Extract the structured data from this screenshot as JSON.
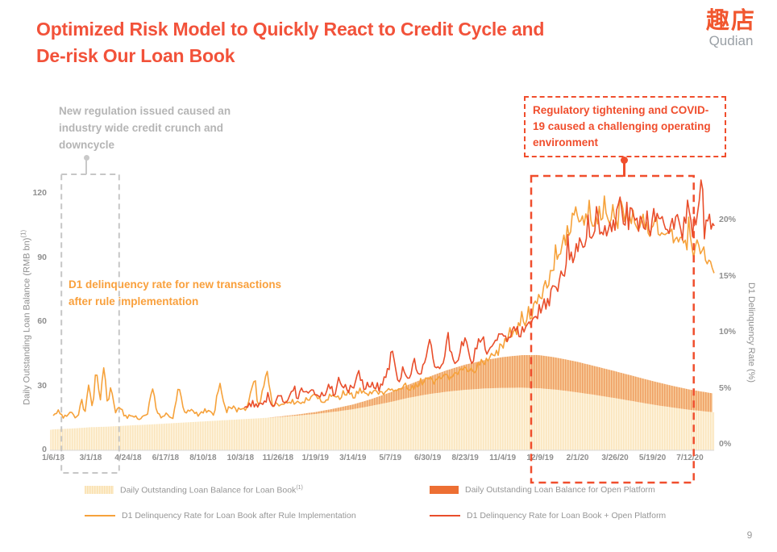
{
  "slide": {
    "title_line1": "Optimized Risk Model to Quickly React to Credit Cycle and",
    "title_line2": "De-risk Our Loan Book",
    "title_color": "#f2523a",
    "page_number": "9",
    "logo": {
      "cjk": "趣店",
      "latin": "Qudian"
    }
  },
  "annotations": {
    "gray": {
      "text": "New regulation issued caused an industry wide credit crunch and downcycle",
      "color": "#b5b5b5"
    },
    "orange": {
      "text": "D1 delinquency rate for new transactions after rule implementation",
      "color": "#f9a03c"
    },
    "red": {
      "text": "Regulatory tightening and COVID-19 caused a challenging operating environment",
      "color": "#f04e2d"
    }
  },
  "chart_data": {
    "type": "combo: stacked daily-bar areas (left axis) + two lines (right axis)",
    "title": "",
    "x_axis": {
      "tick_labels": [
        "1/6/18",
        "3/1/18",
        "4/24/18",
        "6/17/18",
        "8/10/18",
        "10/3/18",
        "11/26/18",
        "1/19/19",
        "3/14/19",
        "5/7/19",
        "6/30/19",
        "8/23/19",
        "11/4/19",
        "12/9/19",
        "2/1/20",
        "3/26/20",
        "5/19/20",
        "7/12/20"
      ]
    },
    "y_left": {
      "label": "Daily Outstanding Loan Balance (RMB bn)",
      "label_sup": "(1)",
      "ticks": [
        "0",
        "30",
        "60",
        "90",
        "120"
      ],
      "tick_values": [
        0,
        30,
        60,
        90,
        120
      ],
      "range": [
        0,
        129
      ]
    },
    "y_right": {
      "label": "D1 Delinquency Rate (%)",
      "ticks": [
        "0%",
        "5%",
        "10%",
        "15%",
        "20%"
      ],
      "tick_values": [
        0,
        5,
        10,
        15,
        20
      ],
      "range": [
        0,
        24.2
      ]
    },
    "highlight_boxes": [
      {
        "name": "gray-dashed-box",
        "color": "#c6c6c6",
        "x_span_ticks": [
          0.22,
          1.76
        ]
      },
      {
        "name": "red-dashed-box",
        "color": "#f04e2d",
        "x_span_ticks": [
          12.76,
          17.1
        ]
      }
    ],
    "series": [
      {
        "name": "Daily Outstanding Loan Balance for Loan Book",
        "sup": "(1)",
        "type": "area",
        "axis": "left",
        "fill_base": "#fdf4de",
        "fill_stripe": "#fbe5bd",
        "points": [
          [
            -0.08,
            9.6
          ],
          [
            0,
            9.8
          ],
          [
            0.5,
            10.2
          ],
          [
            1,
            10.8
          ],
          [
            1.5,
            11.1
          ],
          [
            2,
            11.6
          ],
          [
            2.5,
            12.0
          ],
          [
            3,
            12.5
          ],
          [
            3.5,
            13.0
          ],
          [
            4,
            13.5
          ],
          [
            4.5,
            14.0
          ],
          [
            5,
            14.5
          ],
          [
            5.5,
            15.0
          ],
          [
            6,
            15.5
          ],
          [
            6.5,
            16.2
          ],
          [
            7,
            17.0
          ],
          [
            7.5,
            18.0
          ],
          [
            8,
            19.2
          ],
          [
            8.5,
            20.8
          ],
          [
            9,
            22.6
          ],
          [
            9.5,
            24.6
          ],
          [
            10,
            26.2
          ],
          [
            10.5,
            27.4
          ],
          [
            11,
            28.3
          ],
          [
            11.5,
            28.9
          ],
          [
            12,
            29.2
          ],
          [
            12.5,
            29.3
          ],
          [
            13,
            29.0
          ],
          [
            13.5,
            28.2
          ],
          [
            14,
            27.1
          ],
          [
            14.5,
            25.8
          ],
          [
            15,
            24.4
          ],
          [
            15.5,
            22.9
          ],
          [
            16,
            21.4
          ],
          [
            16.5,
            20.1
          ],
          [
            17,
            18.9
          ],
          [
            17.65,
            17.8
          ]
        ]
      },
      {
        "name": "Daily Outstanding Loan Balance for Open Platform",
        "type": "area-stacked",
        "axis": "left",
        "fill_base": "#f7cb9b",
        "fill_stripe": "#efa164",
        "points": [
          [
            5.7,
            0
          ],
          [
            6,
            0.2
          ],
          [
            6.5,
            0.5
          ],
          [
            7,
            0.9
          ],
          [
            7.5,
            1.5
          ],
          [
            8,
            2.2
          ],
          [
            8.5,
            3.2
          ],
          [
            9,
            4.5
          ],
          [
            9.5,
            6.2
          ],
          [
            10,
            8.0
          ],
          [
            10.5,
            10.0
          ],
          [
            11,
            11.8
          ],
          [
            11.5,
            13.2
          ],
          [
            12,
            14.4
          ],
          [
            12.5,
            15.2
          ],
          [
            12.9,
            15.5
          ],
          [
            13.3,
            15.2
          ],
          [
            13.7,
            14.7
          ],
          [
            14.1,
            14.1
          ],
          [
            14.5,
            13.4
          ],
          [
            15,
            12.6
          ],
          [
            15.5,
            11.8
          ],
          [
            16,
            11.0
          ],
          [
            16.5,
            10.2
          ],
          [
            17,
            9.5
          ],
          [
            17.65,
            8.7
          ]
        ]
      },
      {
        "name": "D1 Delinquency Rate for Loan Book after Rule Implementation",
        "type": "line",
        "axis": "right",
        "color": "#f6a23b",
        "noise": {
          "a": 0.1,
          "b": 0.04,
          "p": 0.05
        },
        "points": [
          [
            0,
            2.6
          ],
          [
            0.15,
            3.1
          ],
          [
            0.3,
            2.4
          ],
          [
            0.5,
            2.9
          ],
          [
            0.65,
            2.3
          ],
          [
            0.75,
            4.3
          ],
          [
            0.85,
            2.7
          ],
          [
            0.95,
            5.6
          ],
          [
            1.05,
            3.1
          ],
          [
            1.15,
            6.9
          ],
          [
            1.25,
            3.8
          ],
          [
            1.35,
            7.1
          ],
          [
            1.45,
            3.4
          ],
          [
            1.55,
            5.2
          ],
          [
            1.65,
            2.8
          ],
          [
            1.8,
            3.3
          ],
          [
            1.95,
            2.4
          ],
          [
            2.1,
            2.7
          ],
          [
            2.3,
            2.3
          ],
          [
            2.5,
            2.6
          ],
          [
            2.65,
            4.9
          ],
          [
            2.8,
            2.5
          ],
          [
            3.0,
            2.7
          ],
          [
            3.2,
            2.5
          ],
          [
            3.35,
            5.3
          ],
          [
            3.5,
            2.8
          ],
          [
            3.7,
            3.0
          ],
          [
            3.9,
            2.7
          ],
          [
            4.1,
            3.1
          ],
          [
            4.3,
            2.8
          ],
          [
            4.45,
            5.8
          ],
          [
            4.6,
            3.0
          ],
          [
            4.8,
            3.3
          ],
          [
            5.0,
            3.0
          ],
          [
            5.2,
            3.4
          ],
          [
            5.35,
            5.5
          ],
          [
            5.5,
            3.2
          ],
          [
            5.7,
            6.7
          ],
          [
            5.85,
            3.5
          ],
          [
            6.0,
            3.7
          ],
          [
            6.2,
            3.4
          ],
          [
            6.4,
            3.9
          ],
          [
            6.6,
            3.6
          ],
          [
            6.8,
            4.1
          ],
          [
            7.0,
            4.3
          ],
          [
            7.2,
            3.9
          ],
          [
            7.4,
            4.4
          ],
          [
            7.6,
            4.1
          ],
          [
            7.8,
            4.6
          ],
          [
            8.0,
            4.3
          ],
          [
            8.2,
            4.8
          ],
          [
            8.4,
            4.5
          ],
          [
            8.6,
            4.9
          ],
          [
            8.8,
            4.6
          ],
          [
            9.0,
            5.1
          ],
          [
            9.2,
            4.8
          ],
          [
            9.4,
            5.3
          ],
          [
            9.6,
            5.0
          ],
          [
            9.8,
            5.6
          ],
          [
            10.0,
            5.8
          ],
          [
            10.2,
            5.5
          ],
          [
            10.4,
            6.1
          ],
          [
            10.6,
            5.8
          ],
          [
            10.8,
            6.4
          ],
          [
            11.0,
            6.9
          ],
          [
            11.2,
            6.6
          ],
          [
            11.4,
            7.3
          ],
          [
            11.6,
            7.6
          ],
          [
            11.8,
            8.0
          ],
          [
            12.0,
            8.9
          ],
          [
            12.2,
            9.6
          ],
          [
            12.4,
            10.3
          ],
          [
            12.6,
            11.0
          ],
          [
            12.8,
            11.8
          ],
          [
            13.0,
            13.2
          ],
          [
            13.2,
            14.6
          ],
          [
            13.4,
            15.8
          ],
          [
            13.6,
            17.6
          ],
          [
            13.8,
            19.4
          ],
          [
            14.0,
            21.0
          ],
          [
            14.15,
            20.0
          ],
          [
            14.3,
            21.2
          ],
          [
            14.45,
            19.9
          ],
          [
            14.6,
            20.9
          ],
          [
            14.75,
            19.7
          ],
          [
            14.9,
            20.7
          ],
          [
            15.05,
            19.9
          ],
          [
            15.2,
            21.1
          ],
          [
            15.35,
            19.8
          ],
          [
            15.5,
            20.6
          ],
          [
            15.65,
            19.4
          ],
          [
            15.8,
            20.2
          ],
          [
            15.95,
            19.0
          ],
          [
            16.1,
            19.8
          ],
          [
            16.25,
            18.7
          ],
          [
            16.4,
            19.3
          ],
          [
            16.55,
            18.3
          ],
          [
            16.7,
            18.9
          ],
          [
            16.85,
            17.6
          ],
          [
            17.0,
            18.3
          ],
          [
            17.1,
            16.9
          ],
          [
            17.2,
            17.8
          ],
          [
            17.3,
            16.4
          ],
          [
            17.4,
            17.2
          ],
          [
            17.5,
            15.9
          ],
          [
            17.65,
            15.3
          ]
        ]
      },
      {
        "name": "D1 Delinquency Rate for Loan Book + Open Platform",
        "type": "line",
        "axis": "right",
        "color": "#e94e2b",
        "noise": {
          "a": 0.12,
          "b": 0.05,
          "p": 0.06
        },
        "points": [
          [
            5.1,
            3.3
          ],
          [
            5.3,
            3.7
          ],
          [
            5.5,
            3.4
          ],
          [
            5.7,
            4.1
          ],
          [
            5.9,
            3.6
          ],
          [
            6.05,
            4.4
          ],
          [
            6.2,
            3.9
          ],
          [
            6.35,
            4.7
          ],
          [
            6.5,
            4.1
          ],
          [
            6.65,
            5.0
          ],
          [
            6.8,
            4.3
          ],
          [
            7.0,
            4.8
          ],
          [
            7.2,
            4.4
          ],
          [
            7.35,
            5.3
          ],
          [
            7.5,
            4.6
          ],
          [
            7.7,
            5.5
          ],
          [
            7.85,
            4.8
          ],
          [
            8.0,
            5.2
          ],
          [
            8.15,
            6.6
          ],
          [
            8.3,
            4.9
          ],
          [
            8.5,
            5.6
          ],
          [
            8.7,
            5.1
          ],
          [
            8.9,
            6.0
          ],
          [
            9.05,
            8.3
          ],
          [
            9.2,
            5.4
          ],
          [
            9.35,
            6.9
          ],
          [
            9.5,
            5.7
          ],
          [
            9.65,
            7.4
          ],
          [
            9.8,
            5.9
          ],
          [
            9.95,
            7.8
          ],
          [
            10.1,
            8.9
          ],
          [
            10.25,
            6.3
          ],
          [
            10.4,
            7.6
          ],
          [
            10.55,
            9.7
          ],
          [
            10.7,
            6.8
          ],
          [
            10.85,
            8.2
          ],
          [
            11.0,
            9.9
          ],
          [
            11.15,
            7.4
          ],
          [
            11.3,
            8.6
          ],
          [
            11.45,
            10.0
          ],
          [
            11.6,
            7.9
          ],
          [
            11.75,
            8.8
          ],
          [
            11.9,
            9.4
          ],
          [
            12.05,
            10.3
          ],
          [
            12.2,
            9.2
          ],
          [
            12.35,
            10.5
          ],
          [
            12.5,
            9.8
          ],
          [
            12.65,
            10.8
          ],
          [
            12.8,
            11.2
          ],
          [
            13.0,
            11.9
          ],
          [
            13.2,
            12.7
          ],
          [
            13.4,
            13.8
          ],
          [
            13.6,
            14.9
          ],
          [
            13.8,
            16.2
          ],
          [
            14.0,
            17.3
          ],
          [
            14.2,
            18.3
          ],
          [
            14.4,
            18.9
          ],
          [
            14.6,
            19.7
          ],
          [
            14.8,
            19.2
          ],
          [
            15.0,
            20.1
          ],
          [
            15.15,
            21.0
          ],
          [
            15.3,
            19.8
          ],
          [
            15.45,
            20.7
          ],
          [
            15.6,
            19.5
          ],
          [
            15.75,
            20.5
          ],
          [
            15.9,
            19.4
          ],
          [
            16.05,
            20.3
          ],
          [
            16.2,
            19.3
          ],
          [
            16.35,
            20.1
          ],
          [
            16.5,
            19.2
          ],
          [
            16.65,
            19.9
          ],
          [
            16.8,
            19.1
          ],
          [
            16.95,
            20.5
          ],
          [
            17.1,
            19.3
          ],
          [
            17.2,
            20.9
          ],
          [
            17.3,
            24.0
          ],
          [
            17.38,
            19.4
          ],
          [
            17.5,
            20.3
          ],
          [
            17.65,
            19.5
          ]
        ]
      }
    ]
  },
  "legend": {
    "items": [
      {
        "label": "Daily Outstanding Loan Balance for Loan Book",
        "sup": "(1)",
        "swatch": "area",
        "c1": "#fae0b0",
        "c2": "#fcefd2"
      },
      {
        "label": "Daily Outstanding Loan Balance for Open Platform",
        "swatch": "area",
        "c1": "#ed6f33",
        "c2": "#ed6f33"
      },
      {
        "label": "D1 Delinquency Rate for Loan Book after Rule Implementation",
        "swatch": "line",
        "c1": "#f6a23b"
      },
      {
        "label": "D1 Delinquency Rate for Loan Book + Open Platform",
        "swatch": "line",
        "c1": "#e94e2b"
      }
    ]
  }
}
